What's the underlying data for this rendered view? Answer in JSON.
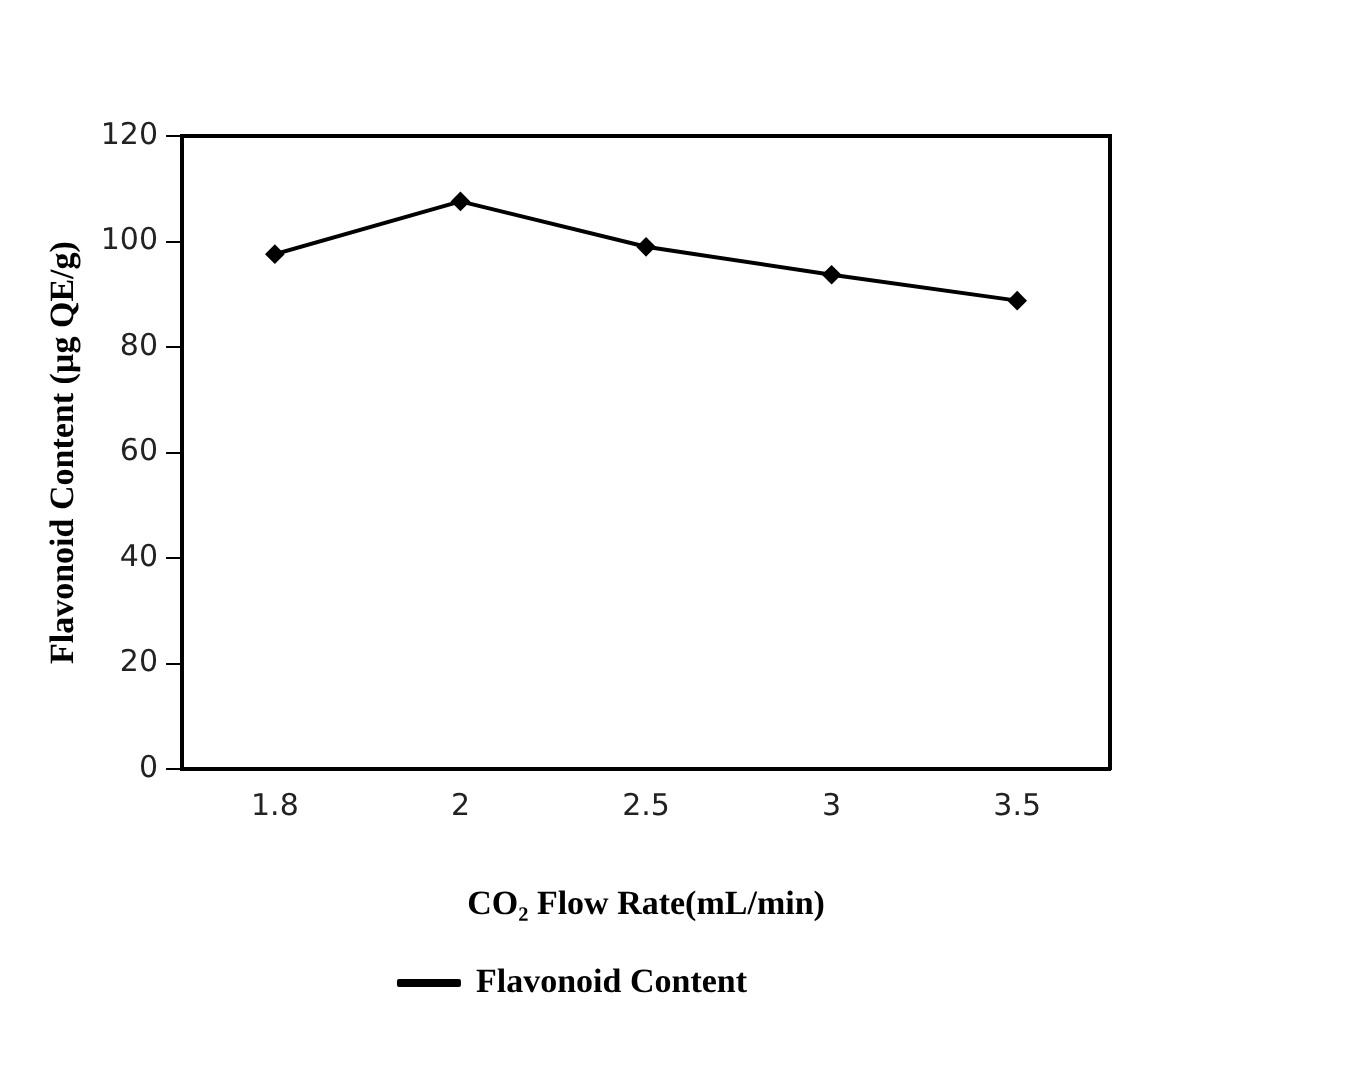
{
  "chart_data": {
    "type": "line",
    "xlabel": "CO₂ Flow Rate(mL/min)",
    "ylabel": "Flavonoid Content (µg QE/g)",
    "categories": [
      "1.8",
      "2",
      "2.5",
      "3",
      "3.5"
    ],
    "series": [
      {
        "name": "Flavonoid Content",
        "color": "#000000",
        "values": [
          97.6,
          107.6,
          99.0,
          93.7,
          88.8
        ]
      }
    ],
    "ylim": [
      0,
      120
    ],
    "yticks": [
      0,
      20,
      40,
      60,
      80,
      100,
      120
    ],
    "grid": false,
    "legend": "bottom",
    "marker": "diamond",
    "line_style": "solid"
  }
}
